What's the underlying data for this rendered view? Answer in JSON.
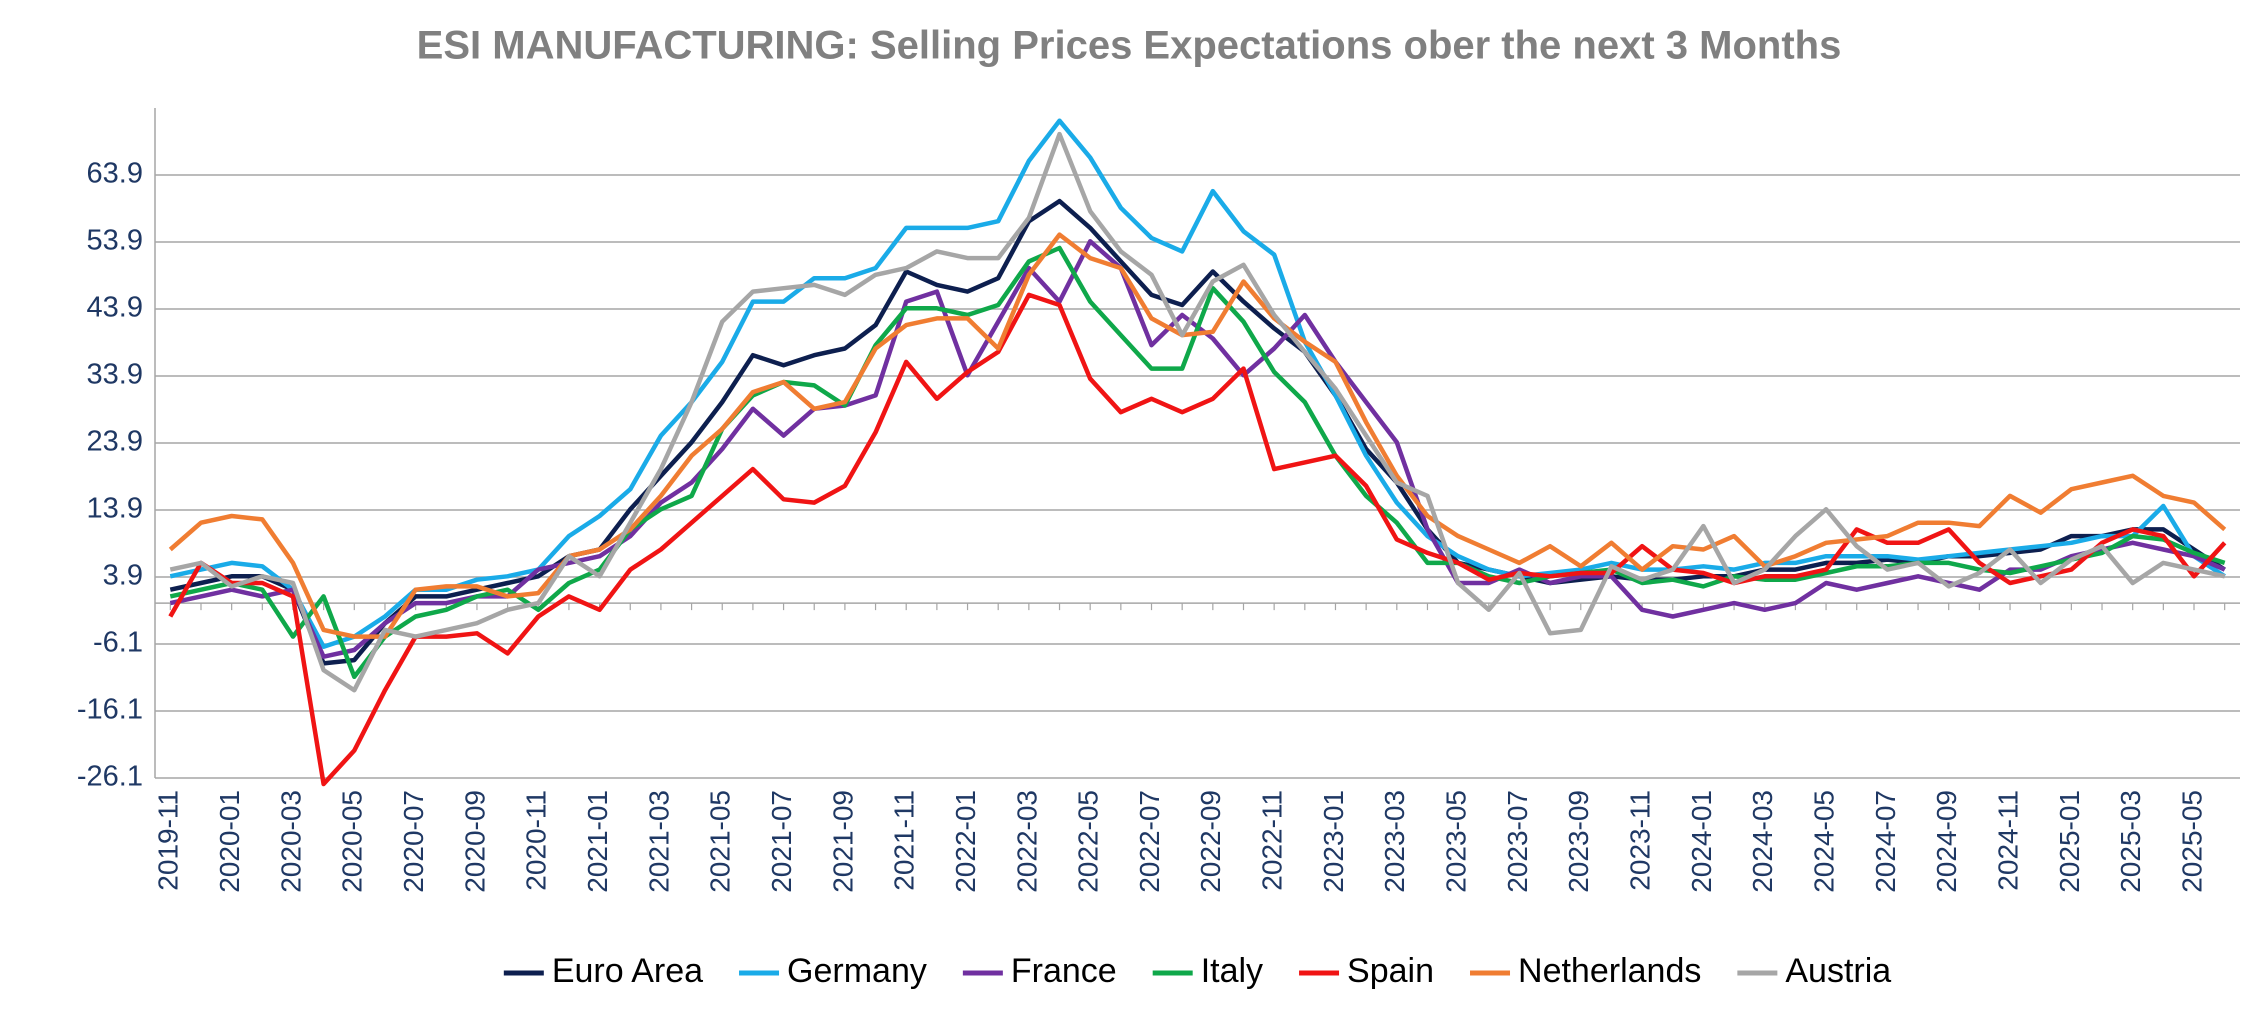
{
  "chart_data": {
    "type": "line",
    "title": "ESI MANUFACTURING:  Selling Prices Expectations ober the next 3 Months",
    "categories": [
      "2019-11",
      null,
      "2020-01",
      null,
      "2020-03",
      null,
      "2020-05",
      null,
      "2020-07",
      null,
      "2020-09",
      null,
      "2020-11",
      null,
      "2021-01",
      null,
      "2021-03",
      null,
      "2021-05",
      null,
      "2021-07",
      null,
      "2021-09",
      null,
      "2021-11",
      null,
      "2022-01",
      null,
      "2022-03",
      null,
      "2022-05",
      null,
      "2022-07",
      null,
      "2022-09",
      null,
      "2022-11",
      null,
      "2023-01",
      null,
      "2023-03",
      null,
      "2023-05",
      null,
      "2023-07",
      null,
      "2023-09",
      null,
      "2023-11",
      null,
      "2024-01",
      null,
      "2024-03",
      null,
      "2024-05",
      null,
      "2024-07",
      null,
      "2024-09",
      null,
      "2024-11",
      null,
      "2025-01",
      null,
      "2025-03",
      null,
      "2025-05",
      null
    ],
    "series": [
      {
        "name": "Euro Area",
        "color": "#0d1f4f",
        "values": [
          2,
          3,
          4,
          4,
          2,
          -9,
          -8.5,
          -3,
          1,
          1,
          2,
          3,
          4,
          7,
          8,
          14,
          19,
          24,
          30,
          37,
          35.5,
          37,
          38,
          41.5,
          49.5,
          47.5,
          46.5,
          48.5,
          57,
          60,
          56,
          51,
          46,
          44.5,
          49.5,
          45,
          41,
          37.5,
          31,
          23,
          18,
          11,
          6,
          5,
          4,
          3,
          3.5,
          4,
          3.5,
          3.5,
          4,
          4,
          5,
          5,
          6,
          6,
          6.5,
          6,
          7,
          7,
          7.5,
          8,
          10,
          10,
          11,
          11,
          8,
          5
        ]
      },
      {
        "name": "Germany",
        "color": "#1aabe8",
        "values": [
          4,
          5,
          6,
          5.5,
          2,
          -6.5,
          -5,
          -2,
          2,
          2,
          3.5,
          4,
          5,
          10,
          13,
          17,
          25,
          30,
          36,
          45,
          45,
          48.5,
          48.5,
          50,
          56,
          56,
          56,
          57,
          66,
          72,
          66.5,
          59,
          54.5,
          52.5,
          61.5,
          55.5,
          52,
          39,
          31,
          22,
          15,
          10,
          7,
          5,
          4,
          4.5,
          5,
          6,
          5,
          5,
          5.5,
          5,
          6,
          6,
          7,
          7,
          7,
          6.5,
          7,
          7.5,
          8,
          8.5,
          9,
          10,
          10,
          14.5,
          7,
          4
        ]
      },
      {
        "name": "France",
        "color": "#7030a0",
        "values": [
          0,
          1,
          2,
          1,
          2,
          -8,
          -7,
          -3,
          0,
          0,
          1,
          1,
          5,
          6,
          7,
          10,
          15,
          18,
          23,
          29,
          25,
          29,
          29.5,
          31,
          45,
          46.5,
          34,
          42,
          50,
          45,
          54,
          50,
          38.5,
          43,
          39.5,
          34,
          38,
          43,
          36,
          30,
          24,
          11,
          3,
          3,
          5,
          3,
          4,
          4,
          -1,
          -2,
          -1,
          0,
          -1,
          0,
          3,
          2,
          3,
          4,
          3,
          2,
          5,
          5,
          7,
          8,
          9,
          8,
          7,
          5
        ]
      },
      {
        "name": "Italy",
        "color": "#0fa84a",
        "values": [
          1,
          2,
          3,
          2,
          -5,
          1,
          -11,
          -5,
          -2,
          -1,
          1,
          2,
          -1,
          3,
          5,
          11,
          14,
          16,
          26,
          31,
          33,
          32.5,
          29.5,
          38.5,
          44,
          44,
          43,
          44.5,
          51,
          53,
          45,
          40,
          35,
          35,
          47,
          42,
          34.5,
          30,
          22,
          16,
          12,
          6,
          6,
          4,
          3,
          4,
          4.5,
          5,
          3,
          3.5,
          2.5,
          4,
          3.5,
          3.5,
          4.5,
          5.5,
          5.5,
          6,
          6,
          5,
          4.5,
          5.5,
          6.5,
          7.5,
          10,
          9.5,
          7.5,
          6
        ]
      },
      {
        "name": "Spain",
        "color": "#f01414",
        "values": [
          -2,
          6,
          3,
          3,
          1,
          -27,
          -22,
          -13,
          -5,
          -5,
          -4.5,
          -7.5,
          -2,
          1,
          -1,
          5,
          8,
          12,
          16,
          20,
          15.5,
          15,
          17.5,
          25.5,
          36,
          30.5,
          34.5,
          37.5,
          46,
          44.5,
          33.5,
          28.5,
          30.5,
          28.5,
          30.5,
          35,
          20,
          21,
          22,
          17.5,
          9.5,
          7.5,
          6,
          3.5,
          4.5,
          4,
          4.5,
          4.5,
          8.5,
          5,
          4.5,
          3,
          4,
          4,
          5,
          11,
          9,
          9,
          11,
          6,
          3,
          4,
          5,
          9,
          11,
          10,
          4,
          9
        ]
      },
      {
        "name": "Netherlands",
        "color": "#f07d32",
        "values": [
          8,
          12,
          13,
          12.5,
          6,
          -4,
          -5,
          -5,
          2,
          2.5,
          2.5,
          1,
          1.5,
          7,
          8,
          11,
          16,
          22,
          26,
          31.5,
          33,
          29,
          30,
          38,
          41.5,
          42.5,
          42.5,
          38,
          49,
          55,
          51.5,
          50,
          42.5,
          40,
          40.5,
          48,
          42.5,
          39,
          36,
          27,
          19,
          13,
          10,
          8,
          6,
          8.5,
          5.5,
          9,
          5,
          8.5,
          8,
          10,
          5.5,
          7,
          9,
          9.5,
          10,
          12,
          12,
          11.5,
          16,
          13.5,
          17,
          18,
          19,
          16,
          15,
          11
        ]
      },
      {
        "name": "Austria",
        "color": "#a6a6a6",
        "values": [
          5,
          6,
          2.5,
          4,
          3,
          -10,
          -13,
          -4,
          -5,
          -4,
          -3,
          -1,
          0,
          7,
          4,
          12,
          20,
          30,
          42,
          46.5,
          47,
          47.5,
          46,
          49,
          50,
          52.5,
          51.5,
          51.5,
          57.5,
          70,
          58.5,
          52.5,
          49,
          40,
          48,
          50.5,
          43,
          37.5,
          32,
          25,
          18,
          16,
          3,
          -1,
          4.5,
          -4.5,
          -4,
          5.5,
          3.5,
          5,
          11.5,
          3,
          5,
          10,
          14,
          8.5,
          5,
          6,
          2.5,
          4.5,
          8,
          3,
          6.5,
          8.5,
          3,
          6,
          5,
          4
        ]
      }
    ],
    "ylim": [
      -26.1,
      73.9
    ],
    "yticks": [
      -26.1,
      -16.1,
      -6.1,
      3.9,
      13.9,
      23.9,
      33.9,
      43.9,
      53.9,
      63.9
    ],
    "grid": true
  }
}
